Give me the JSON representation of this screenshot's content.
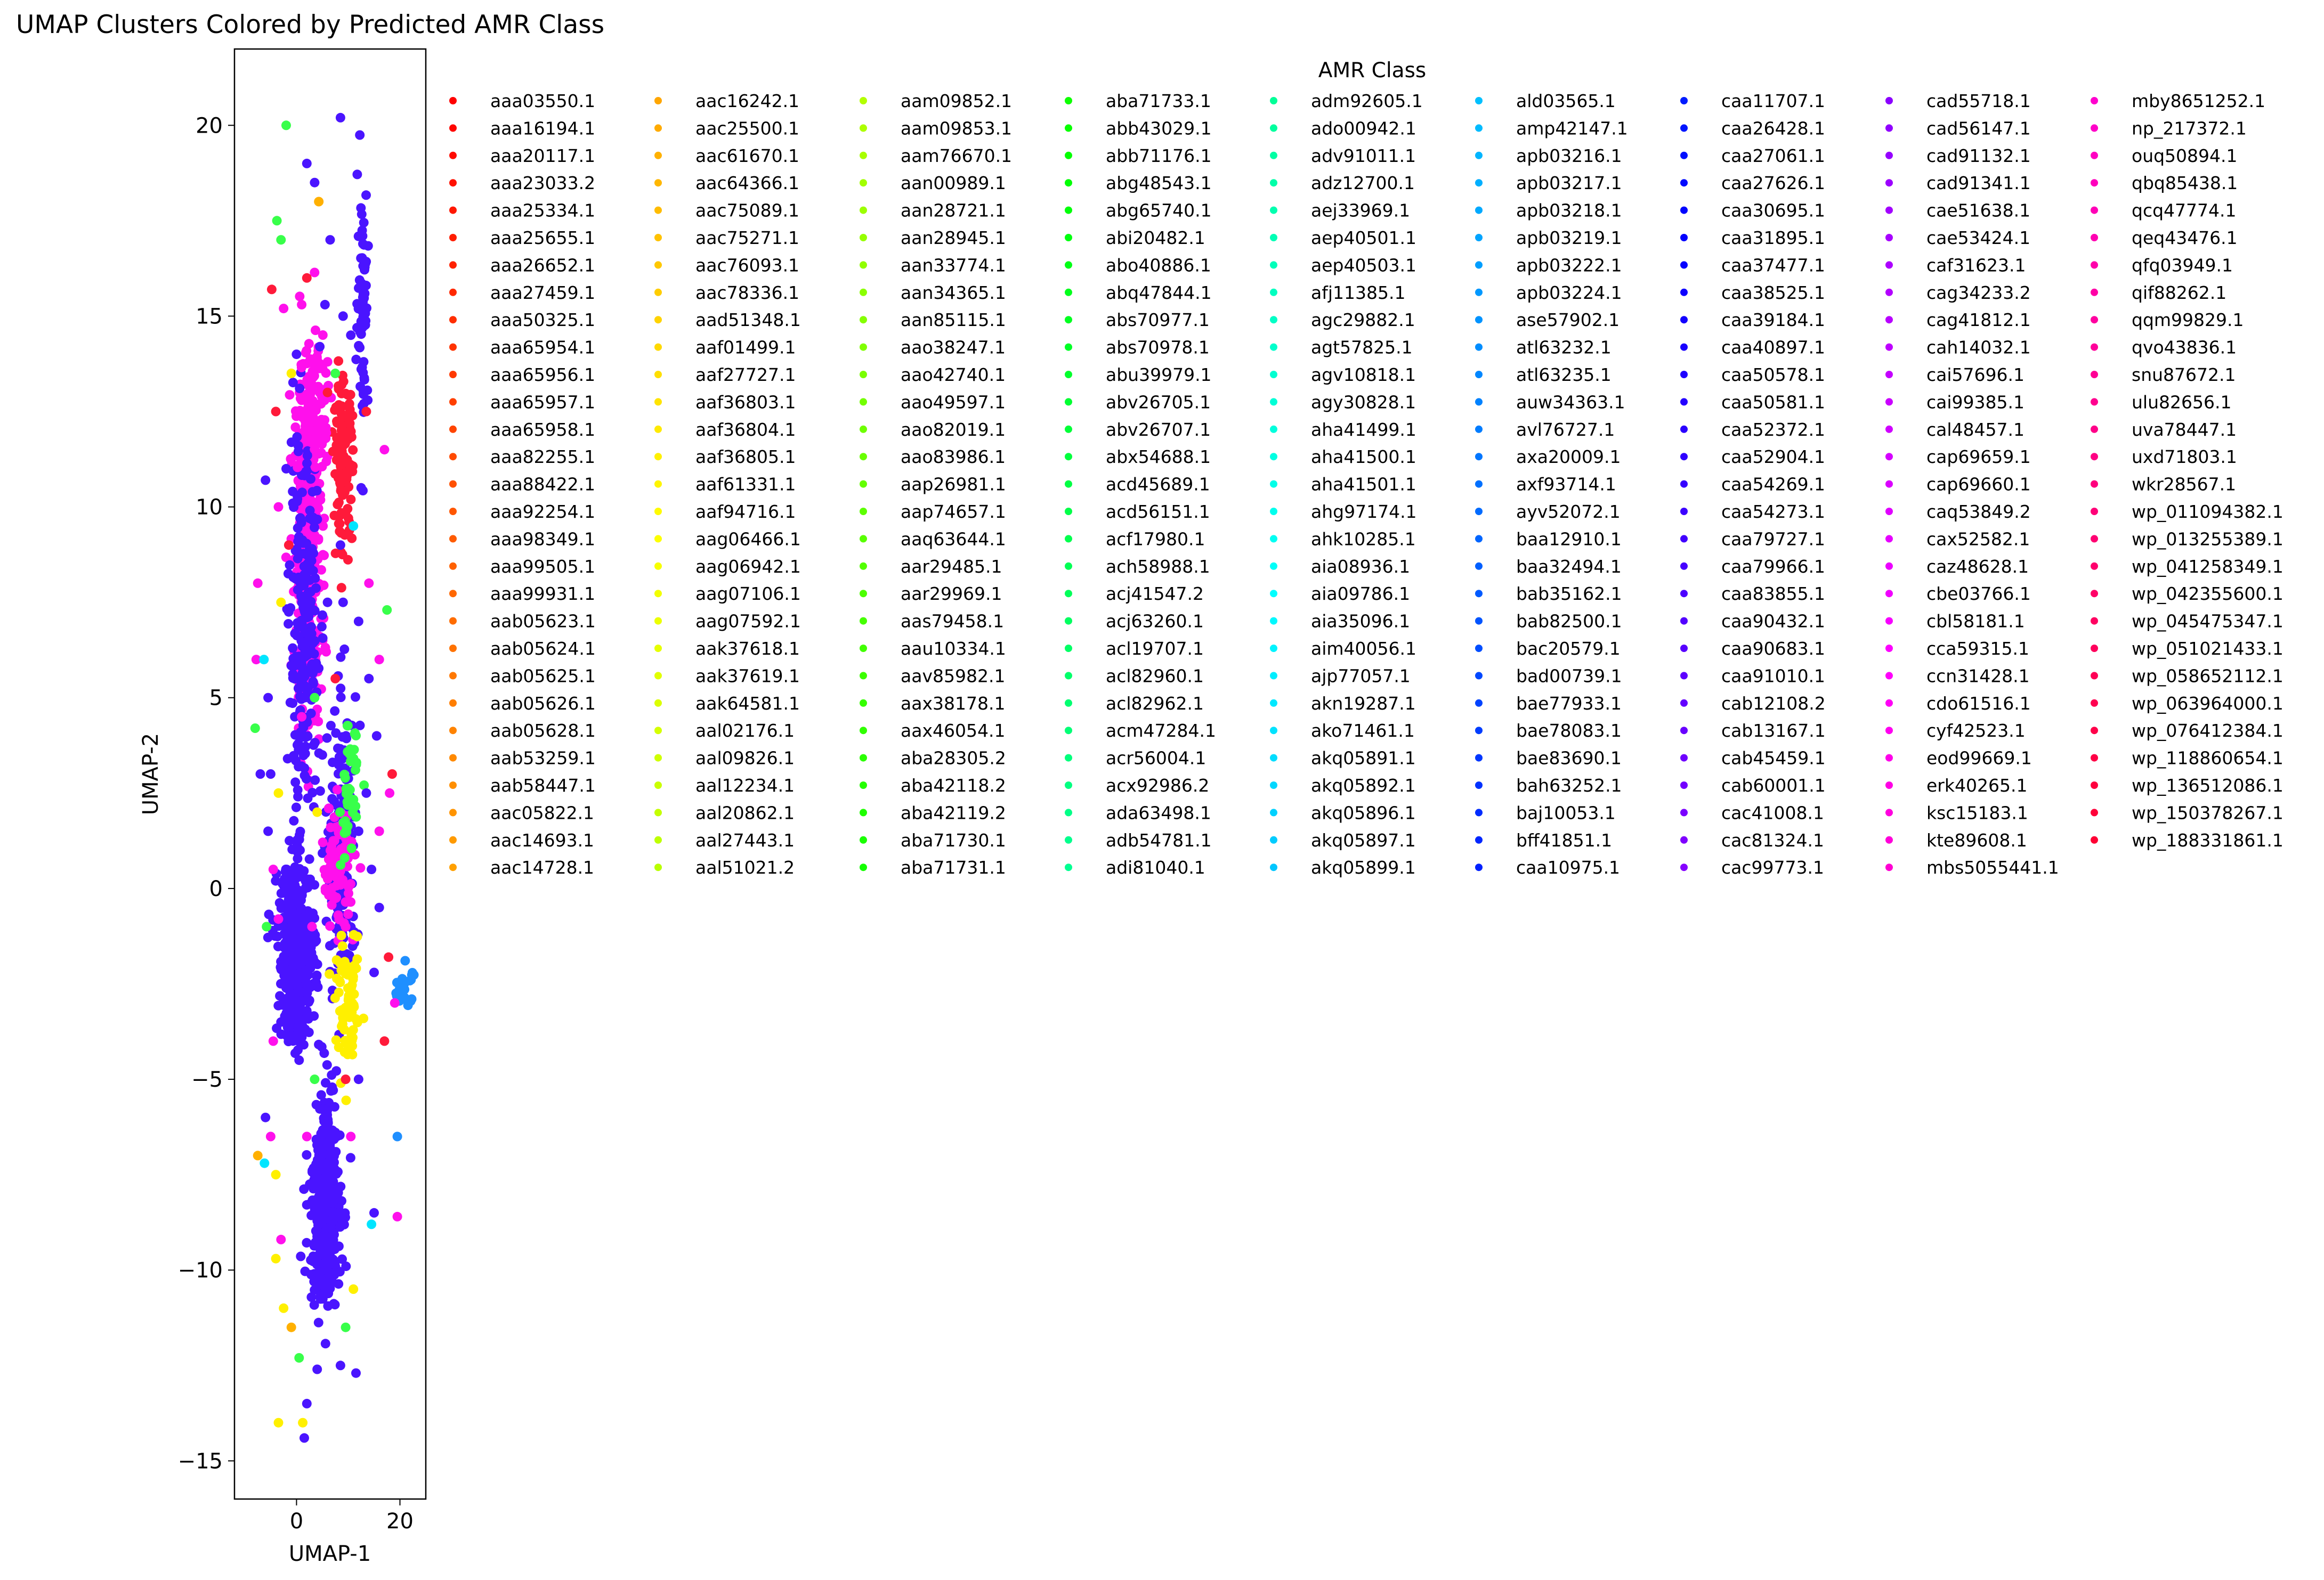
{
  "chart_data": {
    "type": "scatter",
    "title": "UMAP Clusters Colored by Predicted AMR Class",
    "xlabel": "UMAP-1",
    "ylabel": "UMAP-2",
    "xlim": [
      -12,
      25
    ],
    "ylim": [
      -16,
      22
    ],
    "xticks": [
      0,
      20
    ],
    "yticks": [
      -15,
      -10,
      -5,
      0,
      5,
      10,
      15,
      20
    ],
    "legend_title": "AMR Class",
    "legend_placement": "right, outside axes, 9 columns",
    "legend_entries": [
      "aaa03550.1",
      "aaa16194.1",
      "aaa20117.1",
      "aaa23033.2",
      "aaa25334.1",
      "aaa25655.1",
      "aaa26652.1",
      "aaa27459.1",
      "aaa50325.1",
      "aaa65954.1",
      "aaa65956.1",
      "aaa65957.1",
      "aaa65958.1",
      "aaa82255.1",
      "aaa88422.1",
      "aaa92254.1",
      "aaa98349.1",
      "aaa99505.1",
      "aaa99931.1",
      "aab05623.1",
      "aab05624.1",
      "aab05625.1",
      "aab05626.1",
      "aab05628.1",
      "aab53259.1",
      "aab58447.1",
      "aac05822.1",
      "aac14693.1",
      "aac14728.1",
      "aac16242.1",
      "aac25500.1",
      "aac61670.1",
      "aac64366.1",
      "aac75089.1",
      "aac75271.1",
      "aac76093.1",
      "aac78336.1",
      "aad51348.1",
      "aaf01499.1",
      "aaf27727.1",
      "aaf36803.1",
      "aaf36804.1",
      "aaf36805.1",
      "aaf61331.1",
      "aaf94716.1",
      "aag06466.1",
      "aag06942.1",
      "aag07106.1",
      "aag07592.1",
      "aak37618.1",
      "aak37619.1",
      "aak64581.1",
      "aal02176.1",
      "aal09826.1",
      "aal12234.1",
      "aal20862.1",
      "aal27443.1",
      "aal51021.2",
      "aam09852.1",
      "aam09853.1",
      "aam76670.1",
      "aan00989.1",
      "aan28721.1",
      "aan28945.1",
      "aan33774.1",
      "aan34365.1",
      "aan85115.1",
      "aao38247.1",
      "aao42740.1",
      "aao49597.1",
      "aao82019.1",
      "aao83986.1",
      "aap26981.1",
      "aap74657.1",
      "aaq63644.1",
      "aar29485.1",
      "aar29969.1",
      "aas79458.1",
      "aau10334.1",
      "aav85982.1",
      "aax38178.1",
      "aax46054.1",
      "aba28305.2",
      "aba42118.2",
      "aba42119.2",
      "aba71730.1",
      "aba71731.1",
      "aba71733.1",
      "abb43029.1",
      "abb71176.1",
      "abg48543.1",
      "abg65740.1",
      "abi20482.1",
      "abo40886.1",
      "abq47844.1",
      "abs70977.1",
      "abs70978.1",
      "abu39979.1",
      "abv26705.1",
      "abv26707.1",
      "abx54688.1",
      "acd45689.1",
      "acd56151.1",
      "acf17980.1",
      "ach58988.1",
      "acj41547.2",
      "acj63260.1",
      "acl19707.1",
      "acl82960.1",
      "acl82962.1",
      "acm47284.1",
      "acr56004.1",
      "acx92986.2",
      "ada63498.1",
      "adb54781.1",
      "adi81040.1",
      "adm92605.1",
      "ado00942.1",
      "adv91011.1",
      "adz12700.1",
      "aej33969.1",
      "aep40501.1",
      "aep40503.1",
      "afj11385.1",
      "agc29882.1",
      "agt57825.1",
      "agv10818.1",
      "agy30828.1",
      "aha41499.1",
      "aha41500.1",
      "aha41501.1",
      "ahg97174.1",
      "ahk10285.1",
      "aia08936.1",
      "aia09786.1",
      "aia35096.1",
      "aim40056.1",
      "ajp77057.1",
      "akn19287.1",
      "ako71461.1",
      "akq05891.1",
      "akq05892.1",
      "akq05896.1",
      "akq05897.1",
      "akq05899.1",
      "ald03565.1",
      "amp42147.1",
      "apb03216.1",
      "apb03217.1",
      "apb03218.1",
      "apb03219.1",
      "apb03222.1",
      "apb03224.1",
      "ase57902.1",
      "atl63232.1",
      "atl63235.1",
      "auw34363.1",
      "avl76727.1",
      "axa20009.1",
      "axf93714.1",
      "ayv52072.1",
      "baa12910.1",
      "baa32494.1",
      "bab35162.1",
      "bab82500.1",
      "bac20579.1",
      "bad00739.1",
      "bae77933.1",
      "bae78083.1",
      "bae83690.1",
      "bah63252.1",
      "baj10053.1",
      "bff41851.1",
      "caa10975.1",
      "caa11707.1",
      "caa26428.1",
      "caa27061.1",
      "caa27626.1",
      "caa30695.1",
      "caa31895.1",
      "caa37477.1",
      "caa38525.1",
      "caa39184.1",
      "caa40897.1",
      "caa50578.1",
      "caa50581.1",
      "caa52372.1",
      "caa52904.1",
      "caa54269.1",
      "caa54273.1",
      "caa79727.1",
      "caa79966.1",
      "caa83855.1",
      "caa90432.1",
      "caa90683.1",
      "caa91010.1",
      "cab12108.2",
      "cab13167.1",
      "cab45459.1",
      "cab60001.1",
      "cac41008.1",
      "cac81324.1",
      "cac99773.1",
      "cad55718.1",
      "cad56147.1",
      "cad91132.1",
      "cad91341.1",
      "cae51638.1",
      "cae53424.1",
      "caf31623.1",
      "cag34233.2",
      "cag41812.1",
      "cah14032.1",
      "cai57696.1",
      "cai99385.1",
      "cal48457.1",
      "cap69659.1",
      "cap69660.1",
      "caq53849.2",
      "cax52582.1",
      "caz48628.1",
      "cbe03766.1",
      "cbl58181.1",
      "cca59315.1",
      "ccn31428.1",
      "cdo61516.1",
      "cyf42523.1",
      "eod99669.1",
      "erk40265.1",
      "ksc15183.1",
      "kte89608.1",
      "mbs5055441.1",
      "mby8651252.1",
      "np_217372.1",
      "ouq50894.1",
      "qbq85438.1",
      "qcq47774.1",
      "qeq43476.1",
      "qfq03949.1",
      "qif88262.1",
      "qqm99829.1",
      "qvo43836.1",
      "snu87672.1",
      "ulu82656.1",
      "uva78447.1",
      "uxd71803.1",
      "wkr28567.1",
      "wp_011094382.1",
      "wp_013255389.1",
      "wp_041258349.1",
      "wp_042355600.1",
      "wp_045475347.1",
      "wp_051021433.1",
      "wp_058652112.1",
      "wp_063964000.1",
      "wp_076412384.1",
      "wp_118860654.1",
      "wp_136512086.1",
      "wp_150378267.1",
      "wp_188331861.1"
    ],
    "legend_column_sizes": [
      29,
      29,
      29,
      29,
      29,
      29,
      29,
      29,
      28
    ],
    "clusters": [
      {
        "name": "upper-left magenta cluster",
        "color": "#ff10ec",
        "cx": 2.2,
        "cy": 9.0,
        "sx": 1.3,
        "sy": 2.4,
        "n": 420
      },
      {
        "name": "upper-left blue cluster",
        "color": "#4a14ff",
        "cx": 1.4,
        "cy": 6.4,
        "sx": 1.4,
        "sy": 2.4,
        "n": 240
      },
      {
        "name": "red cluster",
        "color": "#ff1a3a",
        "cx": 9.0,
        "cy": 11.2,
        "sx": 0.9,
        "sy": 1.0,
        "n": 140
      },
      {
        "name": "magenta cluster upper",
        "color": "#ff10ec",
        "cx": 4.0,
        "cy": 12.8,
        "sx": 1.6,
        "sy": 1.0,
        "n": 70
      },
      {
        "name": "blue column right",
        "color": "#4a14ff",
        "cx": 12.8,
        "cy": 15.5,
        "sx": 0.5,
        "sy": 1.5,
        "n": 70
      },
      {
        "name": "central blue cluster",
        "color": "#4a14ff",
        "cx": 8.8,
        "cy": 0.8,
        "sx": 1.4,
        "sy": 2.0,
        "n": 170
      },
      {
        "name": "central magenta cluster",
        "color": "#ff10ec",
        "cx": 8.0,
        "cy": 0.6,
        "sx": 1.6,
        "sy": 0.8,
        "n": 90
      },
      {
        "name": "central green cluster",
        "color": "#38ff4a",
        "cx": 10.2,
        "cy": 2.4,
        "sx": 0.8,
        "sy": 0.9,
        "n": 40
      },
      {
        "name": "lower-left blue cluster",
        "color": "#4a14ff",
        "cx": 0.0,
        "cy": -1.6,
        "sx": 1.8,
        "sy": 1.2,
        "n": 420
      },
      {
        "name": "yellow cluster",
        "color": "#fff000",
        "cx": 10.0,
        "cy": -3.2,
        "sx": 1.2,
        "sy": 0.8,
        "n": 70
      },
      {
        "name": "lower blue cluster",
        "color": "#4a14ff",
        "cx": 5.5,
        "cy": -8.5,
        "sx": 1.5,
        "sy": 1.2,
        "n": 360
      },
      {
        "name": "lower blue tail",
        "color": "#4a14ff",
        "cx": 6.3,
        "cy": -6.7,
        "sx": 0.6,
        "sy": 0.8,
        "n": 80
      },
      {
        "name": "right blue cluster",
        "color": "#1f8fff",
        "cx": 20.8,
        "cy": -2.6,
        "sx": 0.8,
        "sy": 0.3,
        "n": 25
      }
    ],
    "scattered_points": [
      [
        -8.0,
        4.2,
        "#38ff4a"
      ],
      [
        -7.5,
        8.0,
        "#ff10ec"
      ],
      [
        -7.8,
        6.0,
        "#ff10ec"
      ],
      [
        -6.3,
        6.0,
        "#00e5ff"
      ],
      [
        -6.0,
        10.7,
        "#4a14ff"
      ],
      [
        -5.5,
        5.0,
        "#4a14ff"
      ],
      [
        -4.8,
        15.7,
        "#ff1a3a"
      ],
      [
        -3.8,
        17.5,
        "#38ff4a"
      ],
      [
        -3.0,
        17.0,
        "#38ff4a"
      ],
      [
        -2.5,
        15.2,
        "#ff10ec"
      ],
      [
        -4.0,
        12.5,
        "#ff1a3a"
      ],
      [
        -3.5,
        10.0,
        "#ff10ec"
      ],
      [
        -2.0,
        20.0,
        "#38ff4a"
      ],
      [
        2.0,
        19.0,
        "#4a14ff"
      ],
      [
        3.5,
        18.5,
        "#4a14ff"
      ],
      [
        4.3,
        18.0,
        "#ffb000"
      ],
      [
        8.5,
        20.2,
        "#4a14ff"
      ],
      [
        6.5,
        17.0,
        "#4a14ff"
      ],
      [
        6.0,
        13.0,
        "#ff1a3a"
      ],
      [
        1.0,
        15.3,
        "#ff10ec"
      ],
      [
        2.0,
        16.0,
        "#ff1a3a"
      ],
      [
        4.5,
        14.2,
        "#4a14ff"
      ],
      [
        -1.0,
        13.5,
        "#fff000"
      ],
      [
        -2.0,
        11.0,
        "#4a14ff"
      ],
      [
        -5.0,
        3.0,
        "#4a14ff"
      ],
      [
        -3.5,
        2.5,
        "#fff000"
      ],
      [
        -4.5,
        0.5,
        "#ff10ec"
      ],
      [
        -5.8,
        -1.0,
        "#38ff4a"
      ],
      [
        -7.0,
        3.0,
        "#4a14ff"
      ],
      [
        -5.5,
        1.5,
        "#4a14ff"
      ],
      [
        -3.0,
        -3.5,
        "#4a14ff"
      ],
      [
        -4.5,
        -4.0,
        "#ff10ec"
      ],
      [
        -6.0,
        -6.0,
        "#4a14ff"
      ],
      [
        -5.0,
        -6.5,
        "#ff10ec"
      ],
      [
        -7.5,
        -7.0,
        "#ffb000"
      ],
      [
        -6.2,
        -7.2,
        "#00e5ff"
      ],
      [
        -4.0,
        -7.5,
        "#fff000"
      ],
      [
        -3.0,
        -9.2,
        "#ff10ec"
      ],
      [
        -4.0,
        -9.7,
        "#fff000"
      ],
      [
        -2.5,
        -11.0,
        "#fff000"
      ],
      [
        -1.0,
        -11.5,
        "#ffb000"
      ],
      [
        0.5,
        -12.3,
        "#38ff4a"
      ],
      [
        2.0,
        -13.5,
        "#4a14ff"
      ],
      [
        1.2,
        -14.0,
        "#fff000"
      ],
      [
        1.5,
        -14.4,
        "#4a14ff"
      ],
      [
        -3.5,
        -14.0,
        "#fff000"
      ],
      [
        4.0,
        -12.6,
        "#4a14ff"
      ],
      [
        8.5,
        -12.5,
        "#4a14ff"
      ],
      [
        9.5,
        -11.5,
        "#38ff4a"
      ],
      [
        11.5,
        -12.7,
        "#4a14ff"
      ],
      [
        11.0,
        -10.5,
        "#fff000"
      ],
      [
        14.5,
        -8.8,
        "#00e5ff"
      ],
      [
        15.0,
        -8.5,
        "#4a14ff"
      ],
      [
        19.5,
        -8.6,
        "#ff10ec"
      ],
      [
        19.5,
        -6.5,
        "#1f8fff"
      ],
      [
        17.0,
        -4.0,
        "#ff1a3a"
      ],
      [
        12.0,
        -5.0,
        "#4a14ff"
      ],
      [
        10.5,
        -6.5,
        "#ff10ec"
      ],
      [
        9.5,
        -5.0,
        "#ff1a3a"
      ],
      [
        3.5,
        -5.0,
        "#38ff4a"
      ],
      [
        2.0,
        -6.5,
        "#ff10ec"
      ],
      [
        0.5,
        -4.5,
        "#4a14ff"
      ],
      [
        19.0,
        -3.0,
        "#ff10ec"
      ],
      [
        17.8,
        -1.8,
        "#ff1a3a"
      ],
      [
        16.0,
        1.5,
        "#ff10ec"
      ],
      [
        18.0,
        2.5,
        "#ff10ec"
      ],
      [
        18.5,
        3.0,
        "#ff1a3a"
      ],
      [
        17.5,
        7.3,
        "#38ff4a"
      ],
      [
        14.0,
        8.0,
        "#ff10ec"
      ],
      [
        17.0,
        11.5,
        "#ff10ec"
      ],
      [
        16.0,
        6.0,
        "#ff10ec"
      ],
      [
        12.5,
        10.5,
        "#4a14ff"
      ],
      [
        13.5,
        12.5,
        "#ff1a3a"
      ],
      [
        11.0,
        9.5,
        "#00e5ff"
      ],
      [
        12.0,
        7.0,
        "#4a14ff"
      ],
      [
        14.0,
        5.5,
        "#4a14ff"
      ],
      [
        15.5,
        4.0,
        "#4a14ff"
      ],
      [
        13.5,
        2.5,
        "#4a14ff"
      ],
      [
        12.0,
        1.5,
        "#4a14ff"
      ],
      [
        14.5,
        0.5,
        "#4a14ff"
      ],
      [
        16.0,
        -0.5,
        "#4a14ff"
      ],
      [
        15.0,
        -2.2,
        "#4a14ff"
      ],
      [
        5.0,
        3.5,
        "#4a14ff"
      ],
      [
        4.0,
        2.0,
        "#fff000"
      ],
      [
        3.0,
        -1.0,
        "#ff10ec"
      ],
      [
        -1.5,
        0.0,
        "#4a14ff"
      ],
      [
        -3.5,
        -0.8,
        "#ff10ec"
      ],
      [
        6.0,
        7.5,
        "#4a14ff"
      ],
      [
        7.5,
        5.5,
        "#ff1a3a"
      ],
      [
        9.0,
        7.5,
        "#4a14ff"
      ],
      [
        8.5,
        9.0,
        "#4a14ff"
      ],
      [
        10.5,
        14.5,
        "#4a14ff"
      ],
      [
        9.0,
        15.0,
        "#4a14ff"
      ],
      [
        7.5,
        13.5,
        "#38ff4a"
      ],
      [
        5.5,
        15.3,
        "#4a14ff"
      ],
      [
        0.0,
        14.0,
        "#4a14ff"
      ],
      [
        -1.5,
        9.0,
        "#ff1a3a"
      ],
      [
        -3.0,
        7.5,
        "#fff000"
      ],
      [
        1.0,
        4.5,
        "#ff10ec"
      ],
      [
        3.5,
        5.0,
        "#38ff4a"
      ]
    ]
  }
}
